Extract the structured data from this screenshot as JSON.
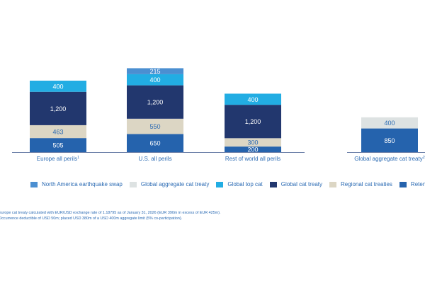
{
  "chart_data": {
    "type": "bar",
    "stacked": true,
    "title": "",
    "xlabel": "",
    "ylabel": "",
    "grid": false,
    "legend_position": "bottom",
    "categories": [
      {
        "label": "Europe all perils",
        "footnote": "1"
      },
      {
        "label": "U.S. all perils",
        "footnote": ""
      },
      {
        "label": "Rest of world all perils",
        "footnote": ""
      },
      {
        "label": "Global aggregate cat treaty",
        "footnote": "2"
      }
    ],
    "series": [
      {
        "name": "Retention",
        "color": "#2563ad",
        "text_color": "#ffffff",
        "values": [
          505,
          650,
          200,
          850
        ]
      },
      {
        "name": "Regional cat treaties",
        "color": "#dcd6c4",
        "text_color": "#2a6ab3",
        "values": [
          463,
          550,
          300,
          null
        ]
      },
      {
        "name": "Global cat treaty",
        "color": "#22376e",
        "text_color": "#ffffff",
        "values": [
          1200,
          1200,
          1200,
          null
        ]
      },
      {
        "name": "Global top cat",
        "color": "#22ade3",
        "text_color": "#ffffff",
        "values": [
          400,
          400,
          400,
          null
        ]
      },
      {
        "name": "Global aggregate cat treaty",
        "color": "#dde2e2",
        "text_color": "#2a6ab3",
        "values": [
          null,
          null,
          null,
          400
        ]
      },
      {
        "name": "North America earthquake swap",
        "color": "#4b8fd1",
        "text_color": "#ffffff",
        "values": [
          null,
          215,
          null,
          null
        ]
      }
    ],
    "value_labels": {
      "Retention": [
        "505",
        "650",
        "200",
        "850"
      ],
      "Regional cat treaties": [
        "463",
        "550",
        "300",
        ""
      ],
      "Global cat treaty": [
        "1,200",
        "1,200",
        "1,200",
        ""
      ],
      "Global top cat": [
        "400",
        "400",
        "400",
        ""
      ],
      "Global aggregate cat treaty": [
        "",
        "",
        "",
        "400"
      ],
      "North America earthquake swap": [
        "",
        "215",
        "",
        ""
      ]
    }
  },
  "legend": [
    {
      "name": "North America earthquake swap",
      "color": "#4b8fd1"
    },
    {
      "name": "Global aggregate cat treaty",
      "color": "#dde2e2"
    },
    {
      "name": "Global top cat",
      "color": "#22ade3"
    },
    {
      "name": "Global cat treaty",
      "color": "#22376e"
    },
    {
      "name": "Regional cat treaties",
      "color": "#dcd6c4"
    },
    {
      "name": "Retention",
      "color": "#2563ad"
    }
  ],
  "footnotes": [
    "Europe cat treaty calculated with EUR/USD exchange rate of 1.18795 as of January 31, 2026 (EUR 390m in excess of EUR 425m).",
    "Occurrence deductible of USD 50m; placed USD 380m of a USD 400m aggregate limit (5% co-participation)."
  ]
}
